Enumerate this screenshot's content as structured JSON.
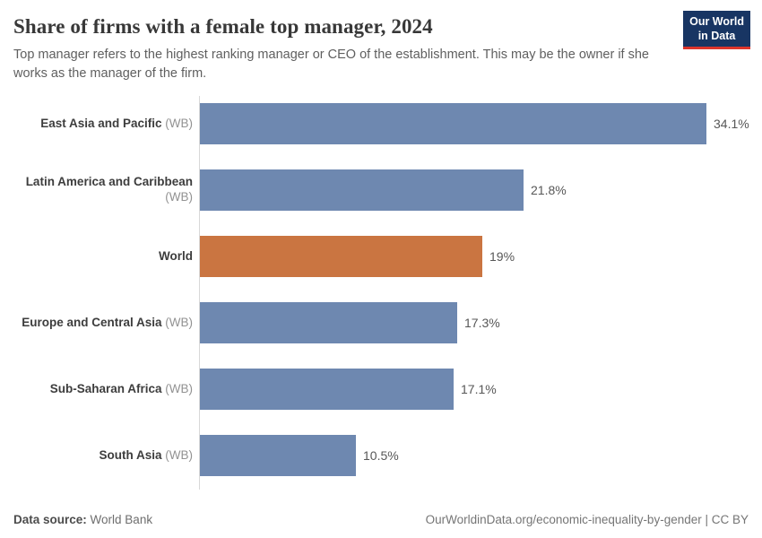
{
  "header": {
    "title": "Share of firms with a female top manager, 2024",
    "subtitle": "Top manager refers to the highest ranking manager or CEO of the establishment. This may be the owner if she works as the manager of the firm.",
    "logo": {
      "line1": "Our World",
      "line2": "in Data"
    }
  },
  "chart_data": {
    "type": "bar",
    "orientation": "horizontal",
    "title": "Share of firms with a female top manager, 2024",
    "xlabel": "",
    "ylabel": "",
    "xlim": [
      0,
      36.7
    ],
    "grid": false,
    "legend": false,
    "categories": [
      "East Asia and Pacific (WB)",
      "Latin America and Caribbean (WB)",
      "World",
      "Europe and Central Asia (WB)",
      "Sub-Saharan Africa (WB)",
      "South Asia (WB)"
    ],
    "values": [
      34.1,
      21.8,
      19,
      17.3,
      17.1,
      10.5
    ],
    "highlight_category": "World",
    "bar_color": "#6e88b0",
    "highlight_color": "#ca7541",
    "rows": [
      {
        "entity": "East Asia and Pacific",
        "suffix": " (WB)",
        "value": 34.1,
        "value_label": "34.1%",
        "color": "#6e88b0"
      },
      {
        "entity": "Latin America and Caribbean",
        "suffix": " (WB)",
        "value": 21.8,
        "value_label": "21.8%",
        "color": "#6e88b0"
      },
      {
        "entity": "World",
        "suffix": "",
        "value": 19,
        "value_label": "19%",
        "color": "#ca7541"
      },
      {
        "entity": "Europe and Central Asia",
        "suffix": " (WB)",
        "value": 17.3,
        "value_label": "17.3%",
        "color": "#6e88b0"
      },
      {
        "entity": "Sub-Saharan Africa",
        "suffix": " (WB)",
        "value": 17.1,
        "value_label": "17.1%",
        "color": "#6e88b0"
      },
      {
        "entity": "South Asia",
        "suffix": " (WB)",
        "value": 10.5,
        "value_label": "10.5%",
        "color": "#6e88b0"
      }
    ]
  },
  "footer": {
    "source_label": "Data source:",
    "source_value": "World Bank",
    "link": "OurWorldinData.org/economic-inequality-by-gender | CC BY"
  }
}
